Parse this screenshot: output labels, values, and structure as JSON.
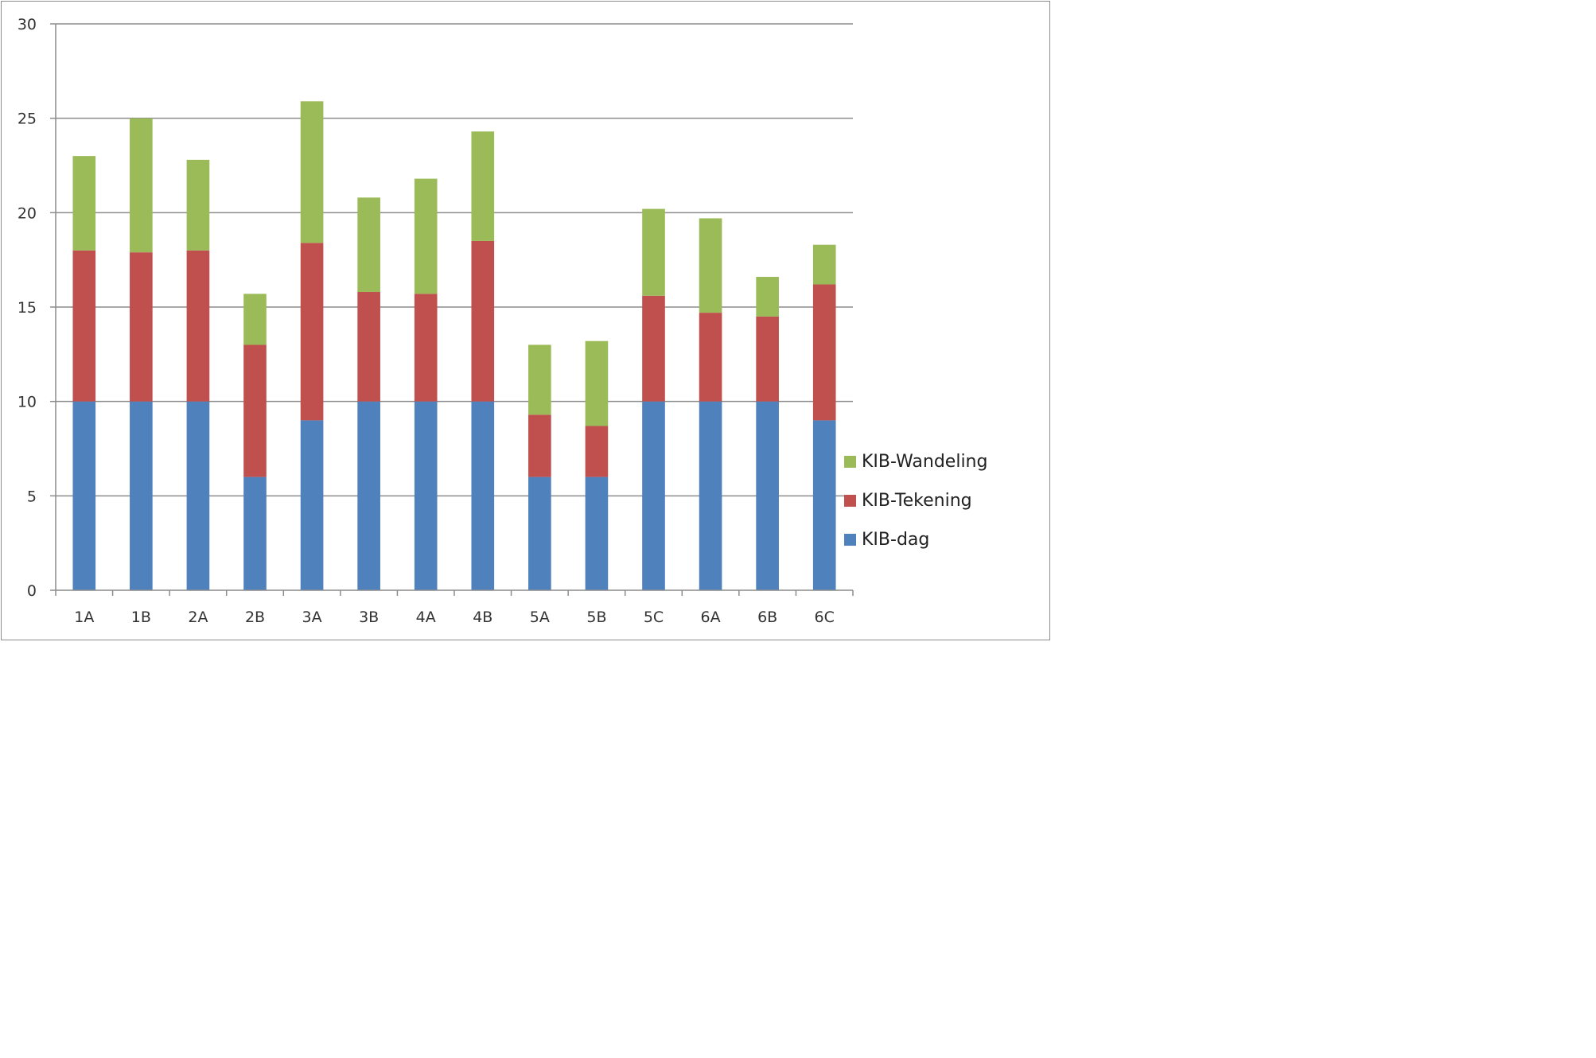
{
  "chart_data": {
    "type": "bar",
    "stacked": true,
    "categories": [
      "1A",
      "1B",
      "2A",
      "2B",
      "3A",
      "3B",
      "4A",
      "4B",
      "5A",
      "5B",
      "5C",
      "6A",
      "6B",
      "6C"
    ],
    "series": [
      {
        "name": "KIB-dag",
        "color": "#4F81BD",
        "values": [
          10,
          10,
          10,
          6,
          9,
          10,
          10,
          10,
          6,
          6,
          10,
          10,
          10,
          9
        ]
      },
      {
        "name": "KIB-Tekening",
        "color": "#C0504D",
        "values": [
          8,
          7.9,
          8,
          7,
          9.4,
          5.8,
          5.7,
          8.5,
          3.3,
          2.7,
          5.6,
          4.7,
          4.5,
          7.2
        ]
      },
      {
        "name": "KIB-Wandeling",
        "color": "#9BBB59",
        "values": [
          5,
          7.1,
          4.8,
          2.7,
          7.5,
          5,
          6.1,
          5.8,
          3.7,
          4.5,
          4.6,
          5,
          2.1,
          2.1
        ]
      }
    ],
    "ylim": [
      0,
      30
    ],
    "yticks": [
      0,
      5,
      10,
      15,
      20,
      25,
      30
    ],
    "grid": true,
    "legend": "right",
    "title": "",
    "xlabel": "",
    "ylabel": ""
  }
}
